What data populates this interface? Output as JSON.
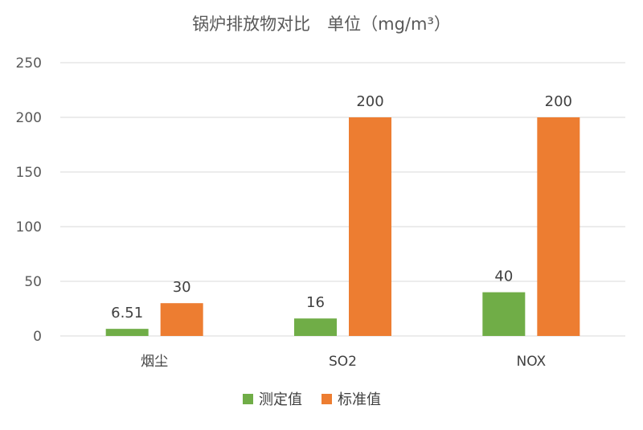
{
  "chart_data": {
    "type": "bar",
    "title": "锅炉排放物对比　单位（mg/m³）",
    "categories": [
      "烟尘",
      "SO2",
      "NOX"
    ],
    "series": [
      {
        "name": "测定值",
        "values": [
          6.51,
          16,
          40
        ],
        "labels": [
          "6.51",
          "16",
          "40"
        ],
        "color": "#70ad47"
      },
      {
        "name": "标准值",
        "values": [
          30,
          200,
          200
        ],
        "labels": [
          "30",
          "200",
          "200"
        ],
        "color": "#ed7d31"
      }
    ],
    "ylim": [
      0,
      250
    ],
    "yticks": [
      0,
      50,
      100,
      150,
      200,
      250
    ],
    "grid": true,
    "legend": "bottom",
    "gridColor": "#d9d9d9"
  }
}
